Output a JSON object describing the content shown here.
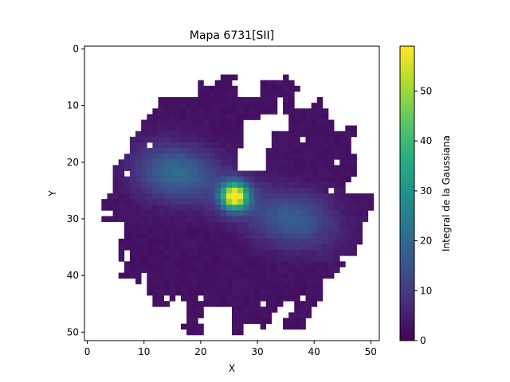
{
  "chart_data": {
    "type": "heatmap",
    "title": "Mapa 6731[SII]",
    "xlabel": "X",
    "ylabel": "Y",
    "x_ticks": [
      0,
      10,
      20,
      30,
      40,
      50
    ],
    "y_ticks": [
      0,
      10,
      20,
      30,
      40,
      50
    ],
    "xlim": [
      -0.5,
      51.5
    ],
    "ylim": [
      51.5,
      -0.5
    ],
    "y_axis_inverted": true,
    "grid_size": [
      52,
      52
    ],
    "colormap": "viridis",
    "colorbar": {
      "label": "Integral de la Gaussiana",
      "range": [
        0,
        59
      ],
      "ticks": [
        0,
        10,
        20,
        30,
        40,
        50
      ]
    },
    "features": {
      "peak": {
        "x": 26,
        "y": 26,
        "value": 59
      },
      "secondary_blobs": [
        {
          "x": 15,
          "y": 22,
          "value": 14
        },
        {
          "x": 37,
          "y": 30,
          "value": 11
        }
      ],
      "background_value": 2,
      "masked_color": "#ffffff"
    }
  }
}
